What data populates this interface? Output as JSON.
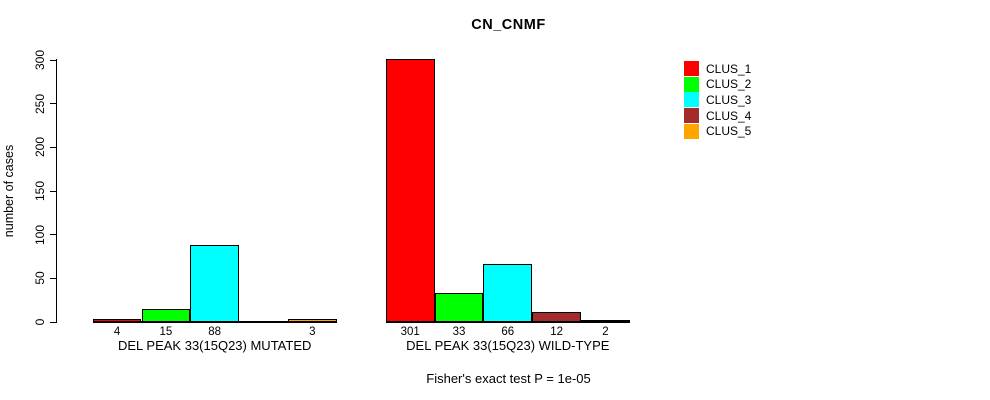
{
  "chart_data": {
    "type": "bar",
    "title": "CN_CNMF",
    "ylabel": "number of cases",
    "xlabel": "",
    "ylim": [
      0,
      300
    ],
    "yticks": [
      0,
      50,
      100,
      150,
      200,
      250,
      300
    ],
    "grid": false,
    "legend_position": "top-right",
    "categories": [
      "DEL PEAK 33(15Q23) MUTATED",
      "DEL PEAK 33(15Q23) WILD-TYPE"
    ],
    "series": [
      {
        "name": "CLUS_1",
        "color": "#FF0000",
        "values": [
          4,
          301
        ]
      },
      {
        "name": "CLUS_2",
        "color": "#00FF00",
        "values": [
          15,
          33
        ]
      },
      {
        "name": "CLUS_3",
        "color": "#00FFFF",
        "values": [
          88,
          66
        ]
      },
      {
        "name": "CLUS_4",
        "color": "#A52A2A",
        "values": [
          0,
          12
        ]
      },
      {
        "name": "CLUS_5",
        "color": "#FFA500",
        "values": [
          3,
          2
        ]
      }
    ],
    "bar_value_labels": [
      [
        "4",
        "15",
        "88",
        "",
        "3"
      ],
      [
        "301",
        "33",
        "66",
        "12",
        "2"
      ]
    ],
    "note": "Fisher's exact test P = 1e-05"
  }
}
